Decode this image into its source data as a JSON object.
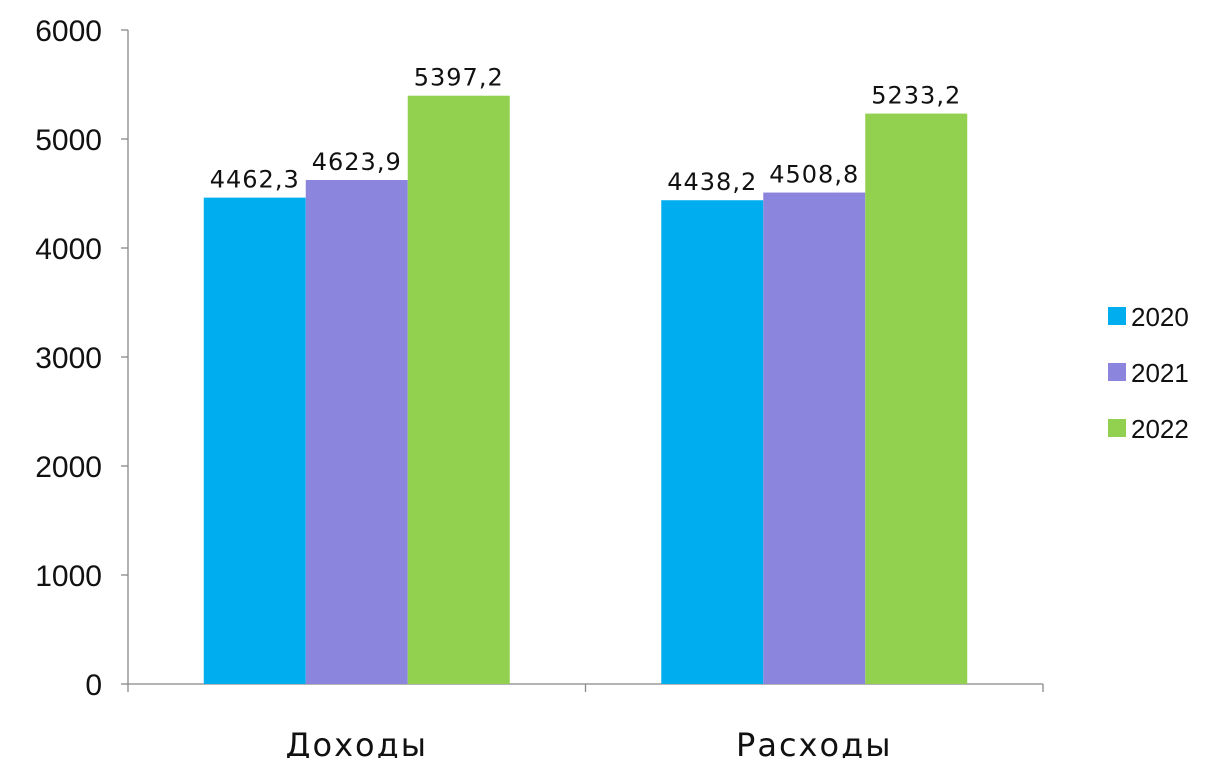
{
  "chart_data": {
    "type": "bar",
    "title": "",
    "xlabel": "",
    "ylabel": "",
    "categories": [
      "Доходы",
      "Расходы"
    ],
    "series": [
      {
        "name": "2020",
        "values": [
          4462.3,
          4438.2
        ],
        "labels": [
          "4462,3",
          "4438,2"
        ],
        "color": "#00AEEF"
      },
      {
        "name": "2021",
        "values": [
          4623.9,
          4508.8
        ],
        "labels": [
          "4623,9",
          "4508,8"
        ],
        "color": "#8C85DE"
      },
      {
        "name": "2022",
        "values": [
          5397.2,
          5233.2
        ],
        "labels": [
          "5397,2",
          "5233,2"
        ],
        "color": "#92D050"
      }
    ],
    "ylim": [
      0,
      6000
    ],
    "yticks": [
      "0",
      "1000",
      "2000",
      "3000",
      "4000",
      "5000",
      "6000"
    ],
    "ytick_values": [
      0,
      1000,
      2000,
      3000,
      4000,
      5000,
      6000
    ],
    "grid": false,
    "legend": "right"
  }
}
